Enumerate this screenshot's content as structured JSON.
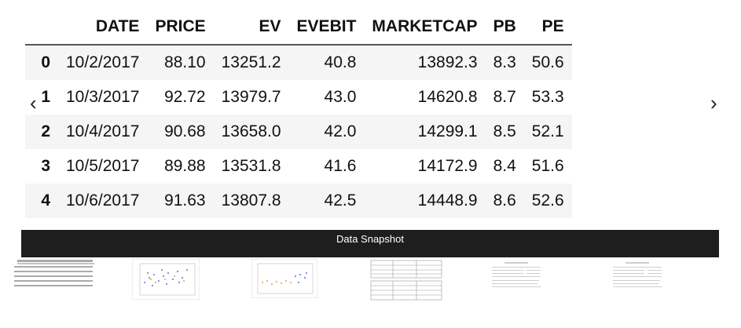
{
  "table": {
    "columns": [
      "",
      "DATE",
      "PRICE",
      "EV",
      "EVEBIT",
      "MARKETCAP",
      "PB",
      "PE"
    ],
    "rows": [
      [
        "0",
        "10/2/2017",
        "88.10",
        "13251.2",
        "40.8",
        "13892.3",
        "8.3",
        "50.6"
      ],
      [
        "1",
        "10/3/2017",
        "92.72",
        "13979.7",
        "43.0",
        "14620.8",
        "8.7",
        "53.3"
      ],
      [
        "2",
        "10/4/2017",
        "90.68",
        "13658.0",
        "42.0",
        "14299.1",
        "8.5",
        "52.1"
      ],
      [
        "3",
        "10/5/2017",
        "89.88",
        "13531.8",
        "41.6",
        "14172.9",
        "8.4",
        "51.6"
      ],
      [
        "4",
        "10/6/2017",
        "91.63",
        "13807.8",
        "42.5",
        "14448.9",
        "8.6",
        "52.6"
      ]
    ]
  },
  "carousel": {
    "prev_label": "‹",
    "next_label": "›",
    "caption": "Data Snapshot"
  },
  "thumbnails": [
    {
      "kind": "table"
    },
    {
      "kind": "scatter"
    },
    {
      "kind": "scatter2"
    },
    {
      "kind": "stats-table"
    },
    {
      "kind": "document"
    },
    {
      "kind": "document"
    }
  ],
  "colors": {
    "caption_bg": "#1e1e1e",
    "row_stripe": "#f5f5f5",
    "scatter_blue": "#6a6ad8",
    "scatter_orange": "#e0a050"
  }
}
